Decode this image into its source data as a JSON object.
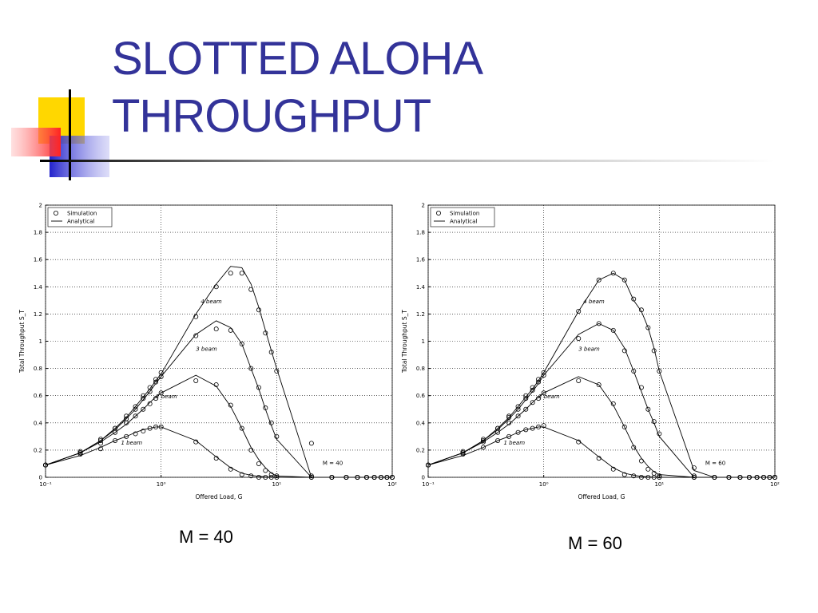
{
  "title_lines": [
    "SLOTTED ALOHA",
    "THROUGHPUT"
  ],
  "chart_data": [
    {
      "type": "line",
      "xscale": "log",
      "grid": true,
      "legend_corner": "upper left",
      "x_label": "Offered Load, G",
      "y_label": "Total Throughput S_T",
      "legend": [
        "Simulation",
        "Analytical"
      ],
      "annotation": "M = 40",
      "caption": "M = 40",
      "xlim": [
        0.1,
        100
      ],
      "ylim": [
        0,
        2
      ],
      "xticks": [
        {
          "value": 0.1,
          "label": "10⁻¹"
        },
        {
          "value": 1,
          "label": "10⁰"
        },
        {
          "value": 10,
          "label": "10¹"
        },
        {
          "value": 100,
          "label": "10²"
        }
      ],
      "yticks": [
        0,
        0.2,
        0.4,
        0.6,
        0.8,
        1,
        1.2,
        1.4,
        1.6,
        1.8,
        2
      ],
      "color": "#000000",
      "x": [
        0.1,
        0.2,
        0.3,
        0.4,
        0.5,
        0.6,
        0.7,
        0.8,
        0.9,
        1,
        2,
        3,
        4,
        5,
        6,
        7,
        8,
        9,
        10,
        20,
        30,
        40,
        50,
        60,
        70,
        80,
        90,
        100
      ],
      "curves": [
        {
          "label": "1 beam",
          "analytical": [
            0.09,
            0.16,
            0.22,
            0.27,
            0.3,
            0.33,
            0.35,
            0.36,
            0.37,
            0.37,
            0.27,
            0.15,
            0.07,
            0.03,
            0.015,
            0.007,
            0.003,
            0.001,
            0,
            0,
            0,
            0,
            0,
            0,
            0,
            0,
            0,
            0
          ],
          "simulation": [
            0.09,
            0.17,
            0.21,
            0.27,
            0.3,
            0.32,
            0.34,
            0.36,
            0.37,
            0.37,
            0.26,
            0.14,
            0.06,
            0.02,
            0.01,
            0,
            0,
            0,
            0,
            0,
            0,
            0,
            0,
            0,
            0,
            0,
            0,
            0
          ]
        },
        {
          "label": "2 beam",
          "analytical": [
            0.09,
            0.18,
            0.26,
            0.33,
            0.39,
            0.45,
            0.5,
            0.55,
            0.59,
            0.62,
            0.75,
            0.67,
            0.52,
            0.36,
            0.22,
            0.13,
            0.07,
            0.03,
            0.01,
            0,
            0,
            0,
            0,
            0,
            0,
            0,
            0,
            0
          ],
          "simulation": [
            0.09,
            0.18,
            0.25,
            0.33,
            0.4,
            0.45,
            0.5,
            0.54,
            0.58,
            0.62,
            0.71,
            0.68,
            0.53,
            0.36,
            0.2,
            0.1,
            0.05,
            0.02,
            0.01,
            0,
            0,
            0,
            0,
            0,
            0,
            0,
            0,
            0
          ]
        },
        {
          "label": "3 beam",
          "analytical": [
            0.09,
            0.18,
            0.27,
            0.35,
            0.43,
            0.5,
            0.57,
            0.63,
            0.69,
            0.74,
            1.05,
            1.15,
            1.1,
            0.98,
            0.8,
            0.65,
            0.5,
            0.38,
            0.28,
            0,
            0,
            0,
            0,
            0,
            0,
            0,
            0,
            0
          ],
          "simulation": [
            0.09,
            0.18,
            0.27,
            0.36,
            0.43,
            0.5,
            0.58,
            0.63,
            0.7,
            0.74,
            1.04,
            1.09,
            1.08,
            0.98,
            0.8,
            0.66,
            0.51,
            0.4,
            0.3,
            0.01,
            0,
            0,
            0,
            0,
            0,
            0,
            0,
            0
          ]
        },
        {
          "label": "4 beam",
          "analytical": [
            0.09,
            0.18,
            0.27,
            0.36,
            0.44,
            0.52,
            0.59,
            0.65,
            0.71,
            0.76,
            1.2,
            1.42,
            1.55,
            1.54,
            1.42,
            1.25,
            1.08,
            0.93,
            0.8,
            0,
            0,
            0,
            0,
            0,
            0,
            0,
            0,
            0
          ],
          "simulation": [
            0.09,
            0.19,
            0.28,
            0.36,
            0.45,
            0.52,
            0.6,
            0.66,
            0.72,
            0.77,
            1.18,
            1.4,
            1.5,
            1.5,
            1.38,
            1.23,
            1.06,
            0.92,
            0.78,
            0.25,
            0,
            0,
            0,
            0,
            0,
            0,
            0,
            0
          ]
        }
      ]
    },
    {
      "type": "line",
      "xscale": "log",
      "grid": true,
      "legend_corner": "upper left",
      "x_label": "Offered Load, G",
      "y_label": "Total Throughput S_T",
      "legend": [
        "Simulation",
        "Analytical"
      ],
      "annotation": "M = 60",
      "caption": "M = 60",
      "xlim": [
        0.1,
        100
      ],
      "ylim": [
        0,
        2
      ],
      "xticks": [
        {
          "value": 0.1,
          "label": "10⁻¹"
        },
        {
          "value": 1,
          "label": "10⁰"
        },
        {
          "value": 10,
          "label": "10¹"
        },
        {
          "value": 100,
          "label": "10²"
        }
      ],
      "yticks": [
        0,
        0.2,
        0.4,
        0.6,
        0.8,
        1,
        1.2,
        1.4,
        1.6,
        1.8,
        2
      ],
      "color": "#000000",
      "x": [
        0.1,
        0.2,
        0.3,
        0.4,
        0.5,
        0.6,
        0.7,
        0.8,
        0.9,
        1,
        2,
        3,
        4,
        5,
        6,
        7,
        8,
        9,
        10,
        20,
        30,
        40,
        50,
        60,
        70,
        80,
        90,
        100
      ],
      "curves": [
        {
          "label": "1 beam",
          "analytical": [
            0.09,
            0.16,
            0.22,
            0.27,
            0.3,
            0.33,
            0.35,
            0.36,
            0.37,
            0.37,
            0.27,
            0.15,
            0.07,
            0.03,
            0.015,
            0.007,
            0.003,
            0.001,
            0,
            0,
            0,
            0,
            0,
            0,
            0,
            0,
            0,
            0
          ],
          "simulation": [
            0.09,
            0.17,
            0.22,
            0.27,
            0.3,
            0.33,
            0.35,
            0.36,
            0.37,
            0.38,
            0.26,
            0.14,
            0.06,
            0.02,
            0.01,
            0,
            0,
            0,
            0,
            0,
            0,
            0,
            0,
            0,
            0,
            0,
            0,
            0
          ]
        },
        {
          "label": "2 beam",
          "analytical": [
            0.09,
            0.18,
            0.26,
            0.33,
            0.39,
            0.45,
            0.5,
            0.55,
            0.59,
            0.62,
            0.74,
            0.68,
            0.53,
            0.37,
            0.23,
            0.14,
            0.08,
            0.04,
            0.02,
            0,
            0,
            0,
            0,
            0,
            0,
            0,
            0,
            0
          ],
          "simulation": [
            0.09,
            0.18,
            0.26,
            0.33,
            0.4,
            0.45,
            0.5,
            0.55,
            0.58,
            0.62,
            0.71,
            0.68,
            0.54,
            0.37,
            0.22,
            0.12,
            0.06,
            0.03,
            0.01,
            0,
            0,
            0,
            0,
            0,
            0,
            0,
            0,
            0
          ]
        },
        {
          "label": "3 beam",
          "analytical": [
            0.09,
            0.18,
            0.27,
            0.35,
            0.43,
            0.5,
            0.57,
            0.63,
            0.69,
            0.75,
            1.05,
            1.13,
            1.08,
            0.95,
            0.78,
            0.63,
            0.5,
            0.4,
            0.3,
            0,
            0,
            0,
            0,
            0,
            0,
            0,
            0,
            0
          ],
          "simulation": [
            0.09,
            0.18,
            0.27,
            0.36,
            0.44,
            0.5,
            0.58,
            0.64,
            0.7,
            0.75,
            1.02,
            1.13,
            1.08,
            0.93,
            0.78,
            0.66,
            0.5,
            0.41,
            0.32,
            0.01,
            0,
            0,
            0,
            0,
            0,
            0,
            0,
            0
          ]
        },
        {
          "label": "4 beam",
          "analytical": [
            0.09,
            0.18,
            0.27,
            0.36,
            0.44,
            0.52,
            0.59,
            0.65,
            0.71,
            0.77,
            1.22,
            1.45,
            1.5,
            1.45,
            1.3,
            1.22,
            1.1,
            0.95,
            0.78,
            0.05,
            0,
            0,
            0,
            0,
            0,
            0,
            0,
            0
          ],
          "simulation": [
            0.09,
            0.19,
            0.28,
            0.36,
            0.45,
            0.52,
            0.6,
            0.66,
            0.72,
            0.77,
            1.22,
            1.45,
            1.5,
            1.45,
            1.31,
            1.23,
            1.1,
            0.93,
            0.78,
            0.07,
            0,
            0,
            0,
            0,
            0,
            0,
            0,
            0
          ]
        }
      ]
    }
  ]
}
